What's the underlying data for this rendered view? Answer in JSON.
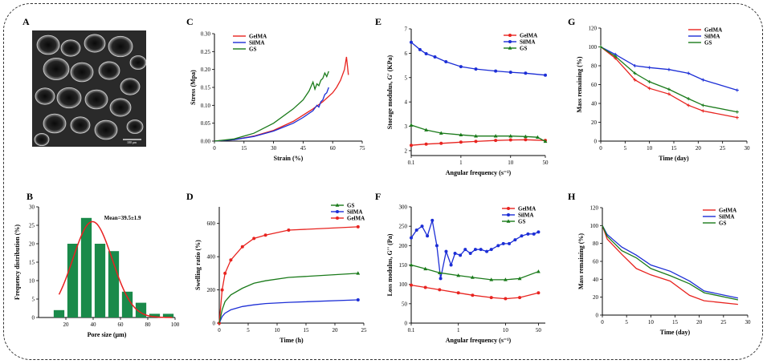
{
  "panels": {
    "A": "A",
    "B": "B",
    "C": "C",
    "D": "D",
    "E": "E",
    "F": "F",
    "G": "G",
    "H": "H"
  },
  "colors": {
    "GelMA": "#e8231f",
    "SilMA": "#1c2ed6",
    "GS": "#1a7a1a",
    "hist": "#1a8a4a",
    "fit": "#e82020"
  },
  "sem": {
    "scale_bar": "100 μm"
  },
  "chart_data": [
    {
      "id": "B",
      "type": "bar",
      "categories": [
        15,
        25,
        35,
        45,
        55,
        65,
        75,
        85,
        95
      ],
      "values": [
        2,
        20,
        27,
        20,
        18,
        7,
        4,
        1,
        1
      ],
      "fit_curve": {
        "mean": 39.5,
        "sd": 14.5,
        "peak": 26
      },
      "annotation": "Mean=39.5±1.9",
      "xlabel": "Pore size (μm)",
      "ylabel": "Frequency distribution (%)",
      "xlim": [
        0,
        100
      ],
      "ylim": [
        0,
        30
      ],
      "xticks": [
        20,
        40,
        60,
        80,
        100
      ],
      "yticks": [
        0,
        5,
        10,
        15,
        20,
        25,
        30
      ]
    },
    {
      "id": "C",
      "type": "line",
      "xlabel": "Strain (%)",
      "ylabel": "Stress (Mpa)",
      "xlim": [
        0,
        75
      ],
      "ylim": [
        0,
        0.3
      ],
      "xticks": [
        0,
        15,
        30,
        45,
        60,
        75
      ],
      "yticks": [
        0.0,
        0.05,
        0.1,
        0.15,
        0.2,
        0.25,
        0.3
      ],
      "legend": [
        "GelMA",
        "SilMA",
        "GS"
      ],
      "series": [
        {
          "name": "GelMA",
          "x": [
            0,
            10,
            20,
            30,
            40,
            50,
            55,
            60,
            62,
            64,
            66,
            67,
            68
          ],
          "y": [
            0,
            0.004,
            0.014,
            0.03,
            0.055,
            0.09,
            0.11,
            0.135,
            0.15,
            0.17,
            0.2,
            0.235,
            0.185
          ]
        },
        {
          "name": "SilMA",
          "x": [
            0,
            10,
            20,
            30,
            40,
            45,
            50,
            52,
            53,
            54,
            55,
            56,
            57,
            58
          ],
          "y": [
            0,
            0.004,
            0.013,
            0.028,
            0.05,
            0.066,
            0.085,
            0.1,
            0.095,
            0.11,
            0.115,
            0.13,
            0.135,
            0.15
          ]
        },
        {
          "name": "GS",
          "x": [
            0,
            10,
            20,
            30,
            40,
            45,
            48,
            50,
            51,
            52,
            53,
            54,
            55,
            56,
            57,
            58
          ],
          "y": [
            0,
            0.006,
            0.022,
            0.05,
            0.09,
            0.115,
            0.14,
            0.165,
            0.145,
            0.16,
            0.155,
            0.17,
            0.175,
            0.19,
            0.18,
            0.195
          ]
        }
      ]
    },
    {
      "id": "D",
      "type": "line",
      "xlabel": "Time (h)",
      "ylabel": "Swelling ratio (%)",
      "xlim": [
        0,
        25
      ],
      "ylim": [
        0,
        700
      ],
      "xticks": [
        0,
        5,
        10,
        15,
        20,
        25
      ],
      "yticks": [
        0,
        200,
        400,
        600
      ],
      "legend": [
        "GS",
        "SilMA",
        "GelMA"
      ],
      "series": [
        {
          "name": "GelMA",
          "x": [
            0,
            0.5,
            1,
            2,
            4,
            6,
            8,
            12,
            24
          ],
          "y": [
            0,
            200,
            300,
            380,
            460,
            510,
            530,
            560,
            580
          ]
        },
        {
          "name": "SilMA",
          "x": [
            0,
            0.5,
            1,
            2,
            4,
            6,
            8,
            12,
            24
          ],
          "y": [
            0,
            40,
            60,
            80,
            100,
            110,
            118,
            125,
            140
          ]
        },
        {
          "name": "GS",
          "x": [
            0,
            0.5,
            1,
            2,
            4,
            6,
            8,
            12,
            24
          ],
          "y": [
            0,
            80,
            130,
            170,
            210,
            240,
            255,
            275,
            300
          ]
        }
      ]
    },
    {
      "id": "E",
      "type": "line",
      "xscale": "log",
      "xlabel": "Angular frequency (s⁻¹)",
      "ylabel": "Storage modulus, G' (KPa)",
      "xlim": [
        0.1,
        50
      ],
      "ylim": [
        1.8,
        7
      ],
      "xticks": [
        0.1,
        1,
        10,
        50
      ],
      "xticklabels": [
        "0.1",
        "1",
        "10",
        "50"
      ],
      "yticks": [
        2,
        3,
        4,
        5,
        6,
        7
      ],
      "legend": [
        "GelMA",
        "SilMA",
        "GS"
      ],
      "series": [
        {
          "name": "GelMA",
          "x": [
            0.1,
            0.2,
            0.4,
            1,
            2,
            5,
            10,
            20,
            50
          ],
          "y": [
            2.22,
            2.27,
            2.3,
            2.35,
            2.38,
            2.42,
            2.44,
            2.45,
            2.42
          ]
        },
        {
          "name": "SilMA",
          "x": [
            0.1,
            0.15,
            0.2,
            0.3,
            0.5,
            1,
            2,
            5,
            10,
            20,
            50
          ],
          "y": [
            6.45,
            6.15,
            5.98,
            5.85,
            5.65,
            5.45,
            5.35,
            5.27,
            5.22,
            5.18,
            5.1
          ]
        },
        {
          "name": "GS",
          "x": [
            0.1,
            0.2,
            0.4,
            1,
            2,
            5,
            10,
            20,
            35,
            50
          ],
          "y": [
            3.05,
            2.85,
            2.72,
            2.65,
            2.6,
            2.6,
            2.6,
            2.58,
            2.55,
            2.38
          ]
        }
      ]
    },
    {
      "id": "F",
      "type": "line",
      "xscale": "log",
      "xlabel": "Angular frequency (s⁻¹)",
      "ylabel": "Loss modulus, G'' (Pa)",
      "xlim": [
        0.1,
        70
      ],
      "ylim": [
        0,
        300
      ],
      "xticks": [
        0.1,
        1,
        10,
        50
      ],
      "xticklabels": [
        "0.1",
        "1",
        "10",
        "50"
      ],
      "yticks": [
        0,
        50,
        100,
        150,
        200,
        250,
        300
      ],
      "legend": [
        "GelMA",
        "SilMA",
        "GS"
      ],
      "series": [
        {
          "name": "GelMA",
          "x": [
            0.1,
            0.2,
            0.4,
            1,
            2,
            5,
            10,
            20,
            50
          ],
          "y": [
            98,
            92,
            86,
            78,
            72,
            66,
            63,
            66,
            78
          ]
        },
        {
          "name": "SilMA",
          "x": [
            0.1,
            0.13,
            0.17,
            0.22,
            0.28,
            0.35,
            0.42,
            0.55,
            0.7,
            0.85,
            1.1,
            1.4,
            1.8,
            2.3,
            3,
            4,
            5,
            7,
            9,
            12,
            16,
            22,
            30,
            40,
            50
          ],
          "y": [
            220,
            240,
            250,
            225,
            265,
            200,
            115,
            185,
            150,
            180,
            175,
            190,
            180,
            190,
            190,
            185,
            190,
            200,
            205,
            205,
            215,
            225,
            230,
            230,
            235
          ]
        },
        {
          "name": "GS",
          "x": [
            0.1,
            0.2,
            0.4,
            1,
            2,
            5,
            10,
            20,
            50
          ],
          "y": [
            150,
            140,
            130,
            123,
            118,
            112,
            112,
            115,
            133
          ]
        }
      ]
    },
    {
      "id": "G",
      "type": "line",
      "xlabel": "Time (day)",
      "ylabel": "Mass remaining (%)",
      "xlim": [
        0,
        30
      ],
      "ylim": [
        0,
        120
      ],
      "xticks": [
        0,
        5,
        10,
        15,
        20,
        25,
        30
      ],
      "yticks": [
        0,
        20,
        40,
        60,
        80,
        100,
        120
      ],
      "legend": [
        "GelMA",
        "SilMA",
        "GS"
      ],
      "series": [
        {
          "name": "GelMA",
          "x": [
            0,
            3,
            7,
            10,
            14,
            18,
            21,
            28
          ],
          "y": [
            100,
            88,
            65,
            56,
            50,
            38,
            32,
            25
          ]
        },
        {
          "name": "SilMA",
          "x": [
            0,
            3,
            7,
            10,
            14,
            18,
            21,
            28
          ],
          "y": [
            100,
            92,
            80,
            78,
            76,
            72,
            65,
            54
          ]
        },
        {
          "name": "GS",
          "x": [
            0,
            3,
            7,
            10,
            14,
            18,
            21,
            28
          ],
          "y": [
            100,
            90,
            72,
            63,
            55,
            45,
            38,
            31
          ]
        }
      ]
    },
    {
      "id": "H",
      "type": "line",
      "xlabel": "Time (day)",
      "ylabel": "Mass remaining (%)",
      "xlim": [
        0,
        30
      ],
      "ylim": [
        0,
        120
      ],
      "xticks": [
        0,
        5,
        10,
        15,
        20,
        25,
        30
      ],
      "yticks": [
        0,
        20,
        40,
        60,
        80,
        100,
        120
      ],
      "legend": [
        "GelMA",
        "SilMA",
        "GS"
      ],
      "series": [
        {
          "name": "GelMA",
          "x": [
            0,
            1,
            4,
            7,
            10,
            14,
            18,
            21,
            28
          ],
          "y": [
            100,
            85,
            68,
            52,
            45,
            38,
            22,
            16,
            12
          ]
        },
        {
          "name": "SilMA",
          "x": [
            0,
            1,
            4,
            7,
            10,
            14,
            18,
            21,
            28
          ],
          "y": [
            100,
            90,
            76,
            67,
            56,
            49,
            38,
            27,
            19
          ]
        },
        {
          "name": "GS",
          "x": [
            0,
            1,
            4,
            7,
            10,
            14,
            18,
            21,
            28
          ],
          "y": [
            100,
            88,
            72,
            64,
            52,
            44,
            35,
            25,
            17
          ]
        }
      ]
    }
  ]
}
